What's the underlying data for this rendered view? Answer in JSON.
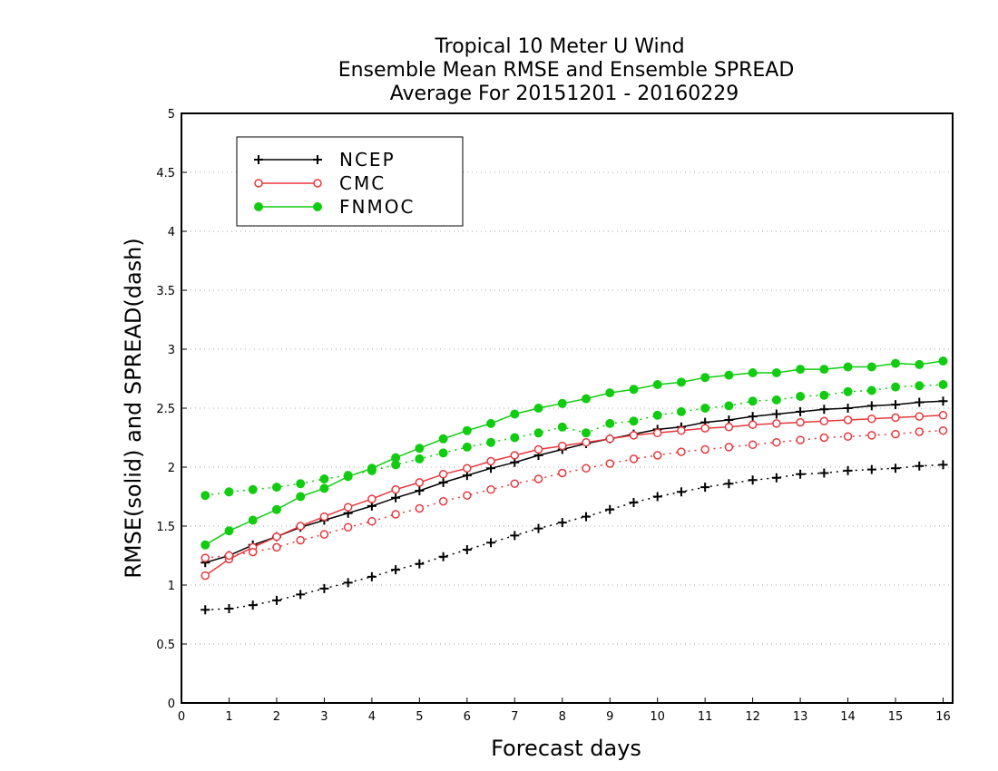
{
  "chart_data": {
    "type": "line",
    "title": [
      "Tropical 10 Meter U Wind",
      "Ensemble Mean RMSE and Ensemble SPREAD",
      "Average For 20151201 - 20160229"
    ],
    "xlabel": "Forecast days",
    "ylabel": "RMSE(solid) and SPREAD(dash)",
    "xlim": [
      0,
      16.2
    ],
    "ylim": [
      0,
      5
    ],
    "xticks": [
      0,
      1,
      2,
      3,
      4,
      5,
      6,
      7,
      8,
      9,
      10,
      11,
      12,
      13,
      14,
      15,
      16
    ],
    "yticks": [
      0,
      0.5,
      1,
      1.5,
      2,
      2.5,
      3,
      3.5,
      4,
      4.5,
      5
    ],
    "ytick_labels": [
      "0",
      "0.5",
      "1",
      "1.5",
      "2",
      "2.5",
      "3",
      "3.5",
      "4",
      "4.5",
      "5"
    ],
    "grid": "horizontal dotted",
    "legend_position": "top-left",
    "x": [
      0.5,
      1,
      1.5,
      2,
      2.5,
      3,
      3.5,
      4,
      4.5,
      5,
      5.5,
      6,
      6.5,
      7,
      7.5,
      8,
      8.5,
      9,
      9.5,
      10,
      10.5,
      11,
      11.5,
      12,
      12.5,
      13,
      13.5,
      14,
      14.5,
      15,
      15.5,
      16
    ],
    "series": [
      {
        "name": "NCEP",
        "kind": "rmse",
        "style": "solid",
        "marker": "plus",
        "color": "#000000",
        "values": [
          1.19,
          1.25,
          1.34,
          1.41,
          1.49,
          1.55,
          1.61,
          1.67,
          1.74,
          1.8,
          1.87,
          1.93,
          1.99,
          2.04,
          2.1,
          2.15,
          2.2,
          2.24,
          2.28,
          2.32,
          2.34,
          2.38,
          2.4,
          2.43,
          2.45,
          2.47,
          2.49,
          2.5,
          2.52,
          2.53,
          2.55,
          2.56
        ]
      },
      {
        "kind": "spread",
        "style": "dash",
        "marker": "plus",
        "color": "#000000",
        "values": [
          0.79,
          0.8,
          0.83,
          0.87,
          0.92,
          0.97,
          1.02,
          1.07,
          1.13,
          1.18,
          1.24,
          1.3,
          1.36,
          1.42,
          1.48,
          1.53,
          1.58,
          1.64,
          1.7,
          1.75,
          1.79,
          1.83,
          1.86,
          1.89,
          1.91,
          1.94,
          1.95,
          1.97,
          1.98,
          1.99,
          2.01,
          2.02
        ]
      },
      {
        "name": "CMC",
        "kind": "rmse",
        "style": "solid",
        "marker": "open-circle",
        "color": "#e8373d",
        "values": [
          1.08,
          1.22,
          1.32,
          1.41,
          1.5,
          1.58,
          1.66,
          1.73,
          1.81,
          1.87,
          1.94,
          1.99,
          2.05,
          2.1,
          2.15,
          2.18,
          2.21,
          2.24,
          2.27,
          2.29,
          2.31,
          2.33,
          2.34,
          2.36,
          2.37,
          2.38,
          2.39,
          2.4,
          2.41,
          2.42,
          2.43,
          2.44
        ]
      },
      {
        "kind": "spread",
        "style": "dash",
        "marker": "open-circle",
        "color": "#e8373d",
        "values": [
          1.23,
          1.25,
          1.28,
          1.32,
          1.38,
          1.43,
          1.49,
          1.54,
          1.6,
          1.65,
          1.71,
          1.76,
          1.81,
          1.86,
          1.9,
          1.95,
          1.99,
          2.03,
          2.07,
          2.1,
          2.13,
          2.15,
          2.17,
          2.19,
          2.21,
          2.23,
          2.25,
          2.26,
          2.27,
          2.28,
          2.3,
          2.31
        ]
      },
      {
        "name": "FNMOC",
        "kind": "rmse",
        "style": "solid",
        "marker": "filled-circle",
        "color": "#11cc11",
        "values": [
          1.34,
          1.46,
          1.55,
          1.64,
          1.75,
          1.82,
          1.92,
          1.99,
          2.08,
          2.16,
          2.24,
          2.31,
          2.37,
          2.45,
          2.5,
          2.54,
          2.58,
          2.63,
          2.66,
          2.7,
          2.72,
          2.76,
          2.78,
          2.8,
          2.8,
          2.83,
          2.83,
          2.85,
          2.85,
          2.88,
          2.87,
          2.9
        ]
      },
      {
        "kind": "spread",
        "style": "dash",
        "marker": "filled-circle",
        "color": "#11cc11",
        "values": [
          1.76,
          1.79,
          1.81,
          1.83,
          1.86,
          1.9,
          1.93,
          1.97,
          2.02,
          2.07,
          2.12,
          2.17,
          2.21,
          2.25,
          2.29,
          2.34,
          2.29,
          2.37,
          2.39,
          2.44,
          2.47,
          2.5,
          2.52,
          2.56,
          2.57,
          2.6,
          2.61,
          2.64,
          2.65,
          2.68,
          2.69,
          2.7
        ]
      }
    ]
  }
}
